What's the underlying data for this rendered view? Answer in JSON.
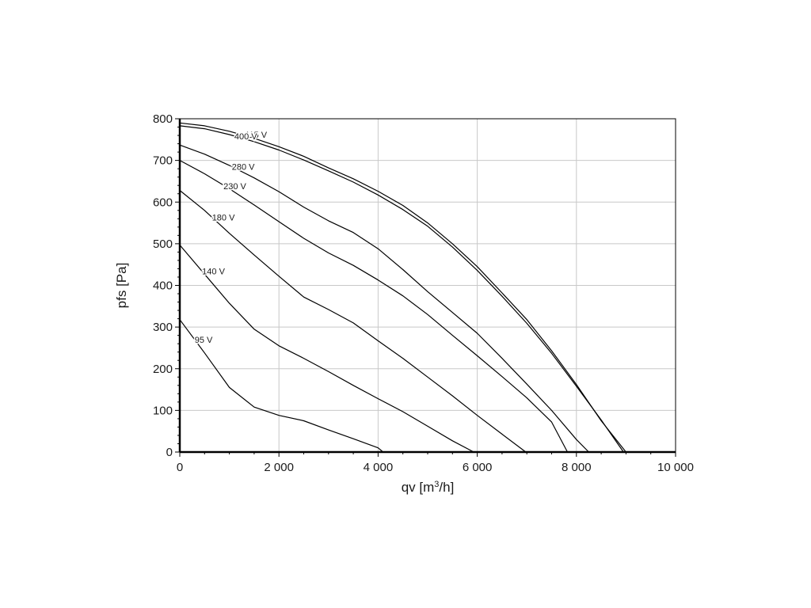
{
  "chart_data": {
    "type": "line",
    "xlabel": "qv [m",
    "xlabel_sup": "3",
    "xlabel_suffix": "/h]",
    "ylabel": "pfs [Pa]",
    "xlim": [
      0,
      10000
    ],
    "ylim": [
      0,
      800
    ],
    "x_ticks": [
      0,
      2000,
      4000,
      6000,
      8000,
      10000
    ],
    "x_tick_labels": [
      "0",
      "2 000",
      "4 000",
      "6 000",
      "8 000",
      "10 000"
    ],
    "y_ticks": [
      0,
      100,
      200,
      300,
      400,
      500,
      600,
      700,
      800
    ],
    "y_tick_labels": [
      "0",
      "100",
      "200",
      "300",
      "400",
      "500",
      "600",
      "700",
      "800"
    ],
    "grid": true,
    "series": [
      {
        "name": "415 V",
        "x": [
          0,
          500,
          1000,
          1500,
          2000,
          2500,
          3000,
          3500,
          4000,
          4500,
          5000,
          5500,
          6000,
          6500,
          7000,
          7500,
          8000,
          8500,
          9000
        ],
        "y": [
          790,
          783,
          770,
          753,
          733,
          710,
          682,
          656,
          626,
          592,
          550,
          500,
          445,
          382,
          318,
          243,
          162,
          75,
          0
        ]
      },
      {
        "name": "400 V",
        "x": [
          0,
          500,
          1000,
          1500,
          2000,
          2500,
          3000,
          3500,
          4000,
          4500,
          5000,
          5500,
          6000,
          6500,
          7000,
          7500,
          8000,
          8500,
          8950
        ],
        "y": [
          783,
          776,
          762,
          745,
          725,
          701,
          675,
          648,
          617,
          582,
          542,
          492,
          436,
          374,
          309,
          237,
          158,
          77,
          0
        ]
      },
      {
        "name": "280 V",
        "x": [
          0,
          500,
          1000,
          1500,
          2000,
          2500,
          3000,
          3500,
          4000,
          4500,
          5000,
          5500,
          6000,
          6500,
          7000,
          7500,
          8000,
          8250
        ],
        "y": [
          737,
          715,
          688,
          658,
          625,
          588,
          555,
          527,
          488,
          438,
          385,
          335,
          285,
          225,
          163,
          100,
          30,
          0
        ]
      },
      {
        "name": "230 V",
        "x": [
          0,
          500,
          1000,
          1500,
          2000,
          2500,
          3000,
          3500,
          4000,
          4500,
          5000,
          5500,
          6000,
          6500,
          7000,
          7500,
          7820
        ],
        "y": [
          700,
          668,
          632,
          593,
          553,
          513,
          478,
          448,
          413,
          375,
          330,
          280,
          231,
          181,
          130,
          72,
          0
        ]
      },
      {
        "name": "180 V",
        "x": [
          0,
          500,
          1000,
          1500,
          2000,
          2500,
          3000,
          3500,
          4000,
          4500,
          5000,
          5500,
          6000,
          6500,
          6980
        ],
        "y": [
          628,
          580,
          525,
          473,
          422,
          372,
          342,
          310,
          267,
          225,
          180,
          135,
          88,
          43,
          0
        ]
      },
      {
        "name": "140 V",
        "x": [
          0,
          500,
          1000,
          1500,
          2000,
          2500,
          3000,
          3500,
          4000,
          4500,
          5000,
          5500,
          5930
        ],
        "y": [
          497,
          427,
          357,
          295,
          255,
          225,
          193,
          160,
          128,
          97,
          62,
          27,
          0
        ]
      },
      {
        "name": "95 V",
        "x": [
          0,
          500,
          1000,
          1500,
          2000,
          2500,
          3000,
          3500,
          4000,
          4100
        ],
        "y": [
          318,
          238,
          155,
          108,
          88,
          75,
          53,
          32,
          10,
          0
        ]
      }
    ]
  }
}
